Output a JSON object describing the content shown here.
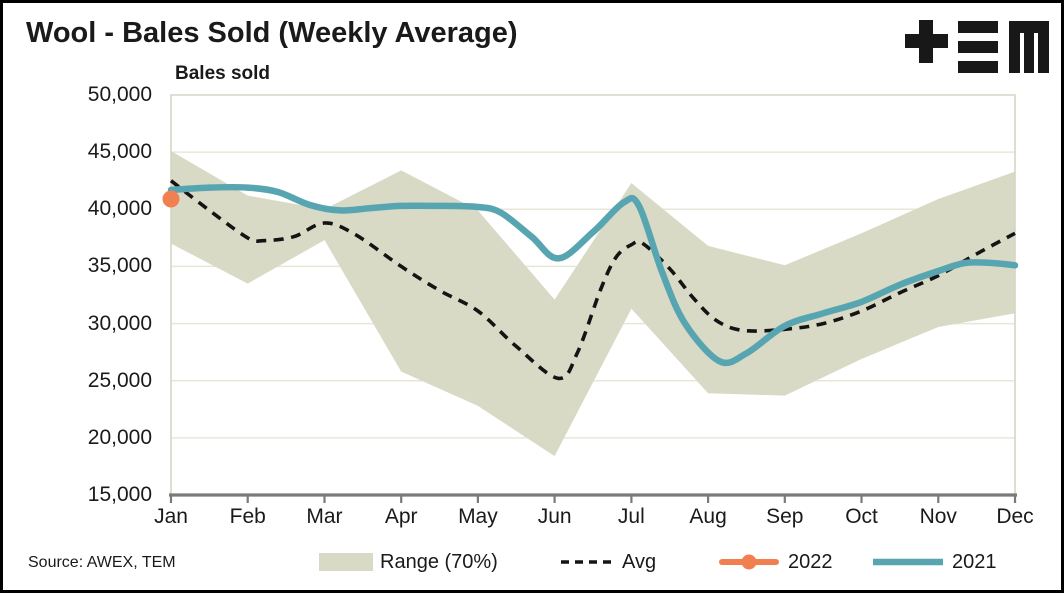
{
  "header": {
    "title": "Wool - Bales Sold (Weekly Average)",
    "logo_glyphs": "+EM"
  },
  "chart": {
    "axis_title": "Bales sold",
    "y_labels": [
      {
        "value": 50000,
        "label": "50,000"
      },
      {
        "value": 45000,
        "label": "45,000"
      },
      {
        "value": 40000,
        "label": "40,000"
      },
      {
        "value": 35000,
        "label": "35,000"
      },
      {
        "value": 30000,
        "label": "30,000"
      },
      {
        "value": 25000,
        "label": "25,000"
      },
      {
        "value": 20000,
        "label": "20,000"
      },
      {
        "value": 15000,
        "label": "15,000"
      }
    ],
    "gridline_values": [
      45000,
      40000,
      35000,
      30000,
      25000,
      20000
    ],
    "colors": {
      "band": "#d9dac5",
      "avg": "#141414",
      "y2021": "#58a5b2",
      "y2022": "#f0804f",
      "grid": "#e7e7d8",
      "plot_border": "#d6d6c4",
      "axis": "#7a7a7a"
    }
  },
  "chart_data": {
    "type": "line",
    "title": "Wool - Bales Sold (Weekly Average)",
    "ylabel": "Bales sold",
    "xlabel": "",
    "ylim": [
      15000,
      50000
    ],
    "y_tick_step": 5000,
    "grid": true,
    "legend_position": "bottom",
    "categories": [
      "Jan",
      "Feb",
      "Mar",
      "Apr",
      "May",
      "Jun",
      "Jul",
      "Aug",
      "Sep",
      "Oct",
      "Nov",
      "Dec"
    ],
    "series": [
      {
        "name": "Range (70%)",
        "type": "band",
        "color": "#d9dac5",
        "upper": [
          45100,
          41200,
          40000,
          43400,
          39900,
          32100,
          42300,
          36800,
          35100,
          37900,
          40900,
          43300
        ],
        "lower": [
          37000,
          33500,
          37300,
          25800,
          22800,
          18400,
          31300,
          23900,
          23700,
          26900,
          29700,
          30900
        ]
      },
      {
        "name": "Avg",
        "type": "line",
        "style": "dashed",
        "color": "#141414",
        "points": [
          [
            1,
            42500
          ],
          [
            1.5,
            39900
          ],
          [
            2,
            37500
          ],
          [
            2.2,
            37250
          ],
          [
            2.6,
            37600
          ],
          [
            3,
            38800
          ],
          [
            3.4,
            37800
          ],
          [
            4,
            35000
          ],
          [
            4.5,
            32900
          ],
          [
            5,
            31100
          ],
          [
            5.5,
            28000
          ],
          [
            6.05,
            25200
          ],
          [
            6.3,
            27500
          ],
          [
            6.6,
            33000
          ],
          [
            6.8,
            35800
          ],
          [
            7,
            36900
          ],
          [
            7.15,
            37000
          ],
          [
            7.5,
            34800
          ],
          [
            7.8,
            32300
          ],
          [
            8.1,
            30300
          ],
          [
            8.45,
            29400
          ],
          [
            9,
            29500
          ],
          [
            9.5,
            30000
          ],
          [
            10,
            31100
          ],
          [
            10.5,
            32700
          ],
          [
            11,
            34200
          ],
          [
            11.5,
            36100
          ],
          [
            12,
            37900
          ]
        ]
      },
      {
        "name": "2022",
        "type": "point",
        "color": "#f0804f",
        "points": [
          [
            1,
            40900
          ]
        ]
      },
      {
        "name": "2021",
        "type": "line",
        "style": "solid",
        "color": "#58a5b2",
        "points": [
          [
            1,
            41700
          ],
          [
            1.5,
            41900
          ],
          [
            2,
            41900
          ],
          [
            2.4,
            41500
          ],
          [
            2.8,
            40400
          ],
          [
            3.2,
            39900
          ],
          [
            3.6,
            40100
          ],
          [
            4,
            40300
          ],
          [
            4.5,
            40300
          ],
          [
            5,
            40200
          ],
          [
            5.3,
            39700
          ],
          [
            5.7,
            37600
          ],
          [
            6.05,
            35700
          ],
          [
            6.5,
            38000
          ],
          [
            6.9,
            40600
          ],
          [
            7.1,
            40300
          ],
          [
            7.4,
            34500
          ],
          [
            7.7,
            30000
          ],
          [
            8.15,
            26700
          ],
          [
            8.5,
            27400
          ],
          [
            9,
            29800
          ],
          [
            9.5,
            30900
          ],
          [
            10,
            31900
          ],
          [
            10.5,
            33400
          ],
          [
            11,
            34600
          ],
          [
            11.35,
            35300
          ],
          [
            11.7,
            35300
          ],
          [
            12,
            35100
          ]
        ]
      }
    ]
  },
  "legend": {
    "items": [
      {
        "label": "Range (70%)"
      },
      {
        "label": "Avg"
      },
      {
        "label": "2022"
      },
      {
        "label": "2021"
      }
    ]
  },
  "footer": {
    "source": "Source: AWEX, TEM"
  }
}
